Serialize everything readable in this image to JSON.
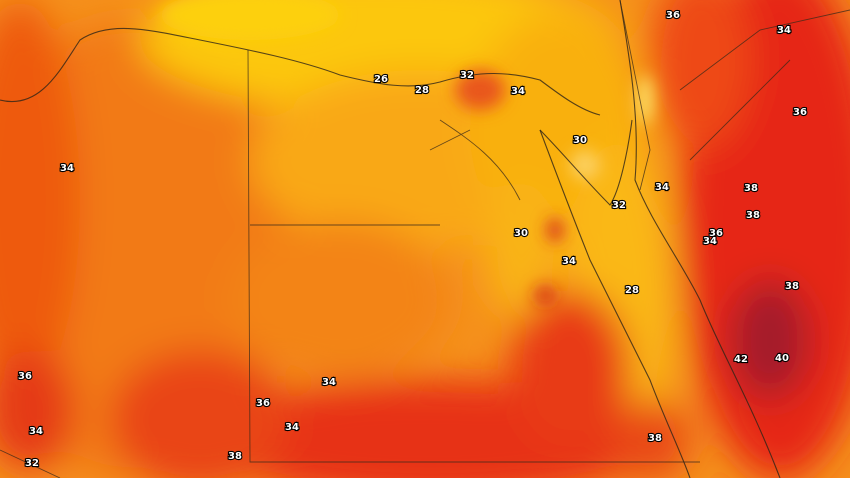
{
  "map": {
    "contour_labels": [
      36,
      34,
      26,
      28,
      32,
      34,
      36,
      34,
      30,
      34,
      38,
      32,
      38,
      36,
      34,
      30,
      34,
      28,
      38,
      42,
      40,
      36,
      34,
      36,
      34,
      34,
      38,
      32,
      38
    ]
  }
}
